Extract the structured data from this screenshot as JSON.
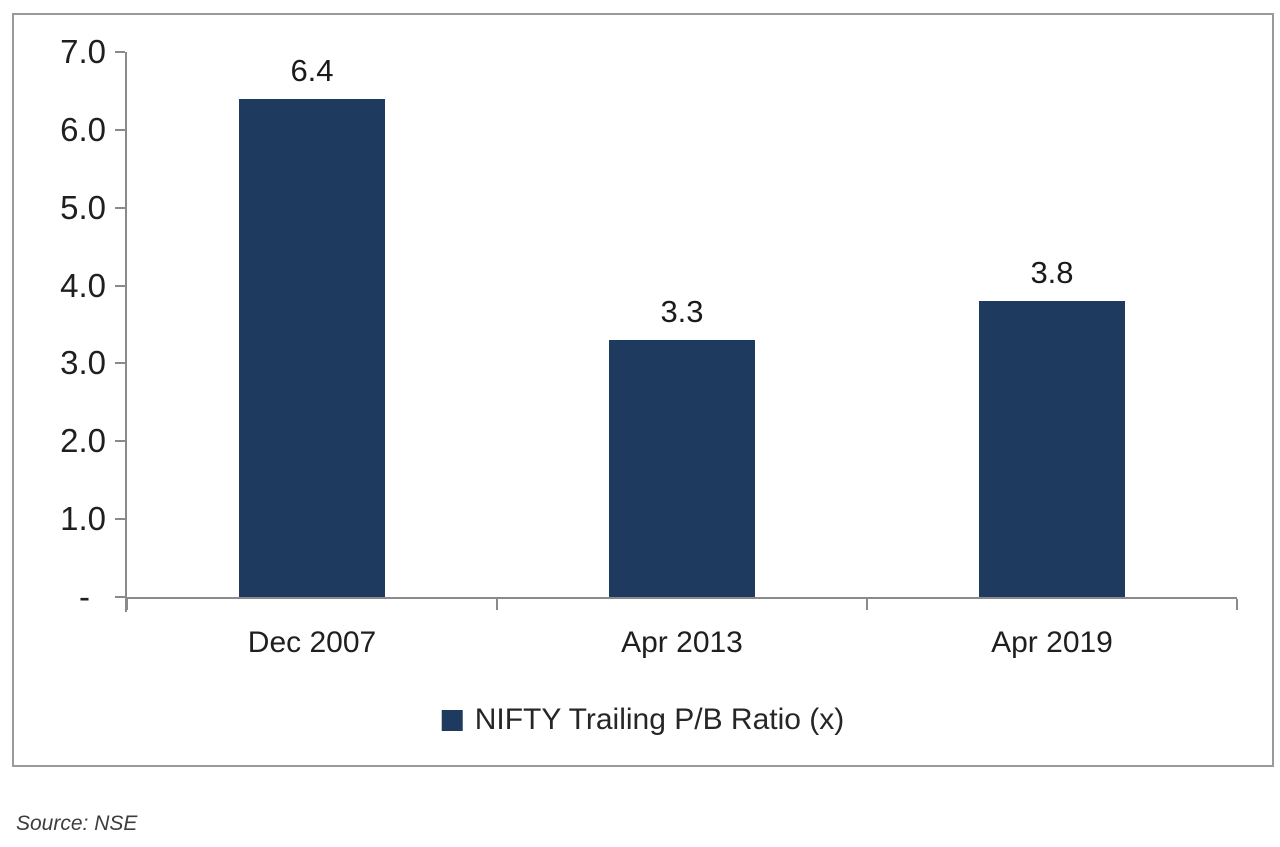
{
  "chart_data": {
    "type": "bar",
    "categories": [
      "Dec 2007",
      "Apr 2013",
      "Apr 2019"
    ],
    "values": [
      6.4,
      3.3,
      3.8
    ],
    "value_labels": [
      "6.4",
      "3.3",
      "3.8"
    ],
    "series_name": "NIFTY Trailing P/B Ratio (x)",
    "title": "",
    "xlabel": "",
    "ylabel": "",
    "ylim": [
      0,
      7
    ],
    "yticks": [
      {
        "label": "7.0",
        "value": 7
      },
      {
        "label": "6.0",
        "value": 6
      },
      {
        "label": "5.0",
        "value": 5
      },
      {
        "label": "4.0",
        "value": 4
      },
      {
        "label": "3.0",
        "value": 3
      },
      {
        "label": "2.0",
        "value": 2
      },
      {
        "label": "1.0",
        "value": 1
      },
      {
        "label": "-",
        "value": 0
      }
    ],
    "grid": false,
    "legend_position": "bottom",
    "bar_color": "#1e3a5f",
    "axis_color": "#8a8a8a",
    "text_color": "#1f1f1f"
  },
  "legend": {
    "marker_icon": "filled-square",
    "marker_color": "#1e3a5f",
    "label": "NIFTY Trailing P/B Ratio (x)"
  },
  "source_note": "Source: NSE"
}
